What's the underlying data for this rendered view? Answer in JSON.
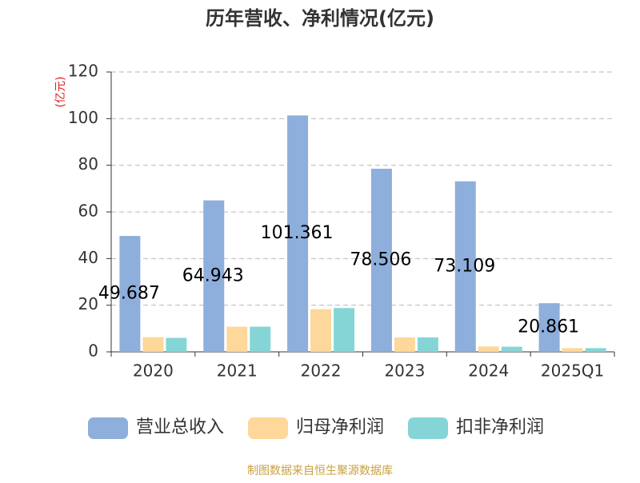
{
  "chart_data": {
    "type": "bar",
    "title": "历年营收、净利情况(亿元)",
    "y_axis_label": "(亿元)",
    "categories": [
      "2020",
      "2021",
      "2022",
      "2023",
      "2024",
      "2025Q1"
    ],
    "series": [
      {
        "name": "营业总收入",
        "color": "#8eaedb",
        "values": [
          49.687,
          64.943,
          101.361,
          78.506,
          73.109,
          20.861
        ],
        "show_labels": true
      },
      {
        "name": "归母净利润",
        "color": "#fdd89a",
        "values": [
          6.3,
          10.8,
          18.3,
          6.2,
          2.3,
          1.6
        ]
      },
      {
        "name": "扣非净利润",
        "color": "#86d5d6",
        "values": [
          6.0,
          10.8,
          18.8,
          6.2,
          2.2,
          1.6
        ]
      }
    ],
    "ylim": [
      0,
      120
    ],
    "yticks": [
      0,
      20,
      40,
      60,
      80,
      100,
      120
    ],
    "grid": true,
    "legend": "bottom",
    "source": "制图数据来自恒生聚源数据库"
  }
}
